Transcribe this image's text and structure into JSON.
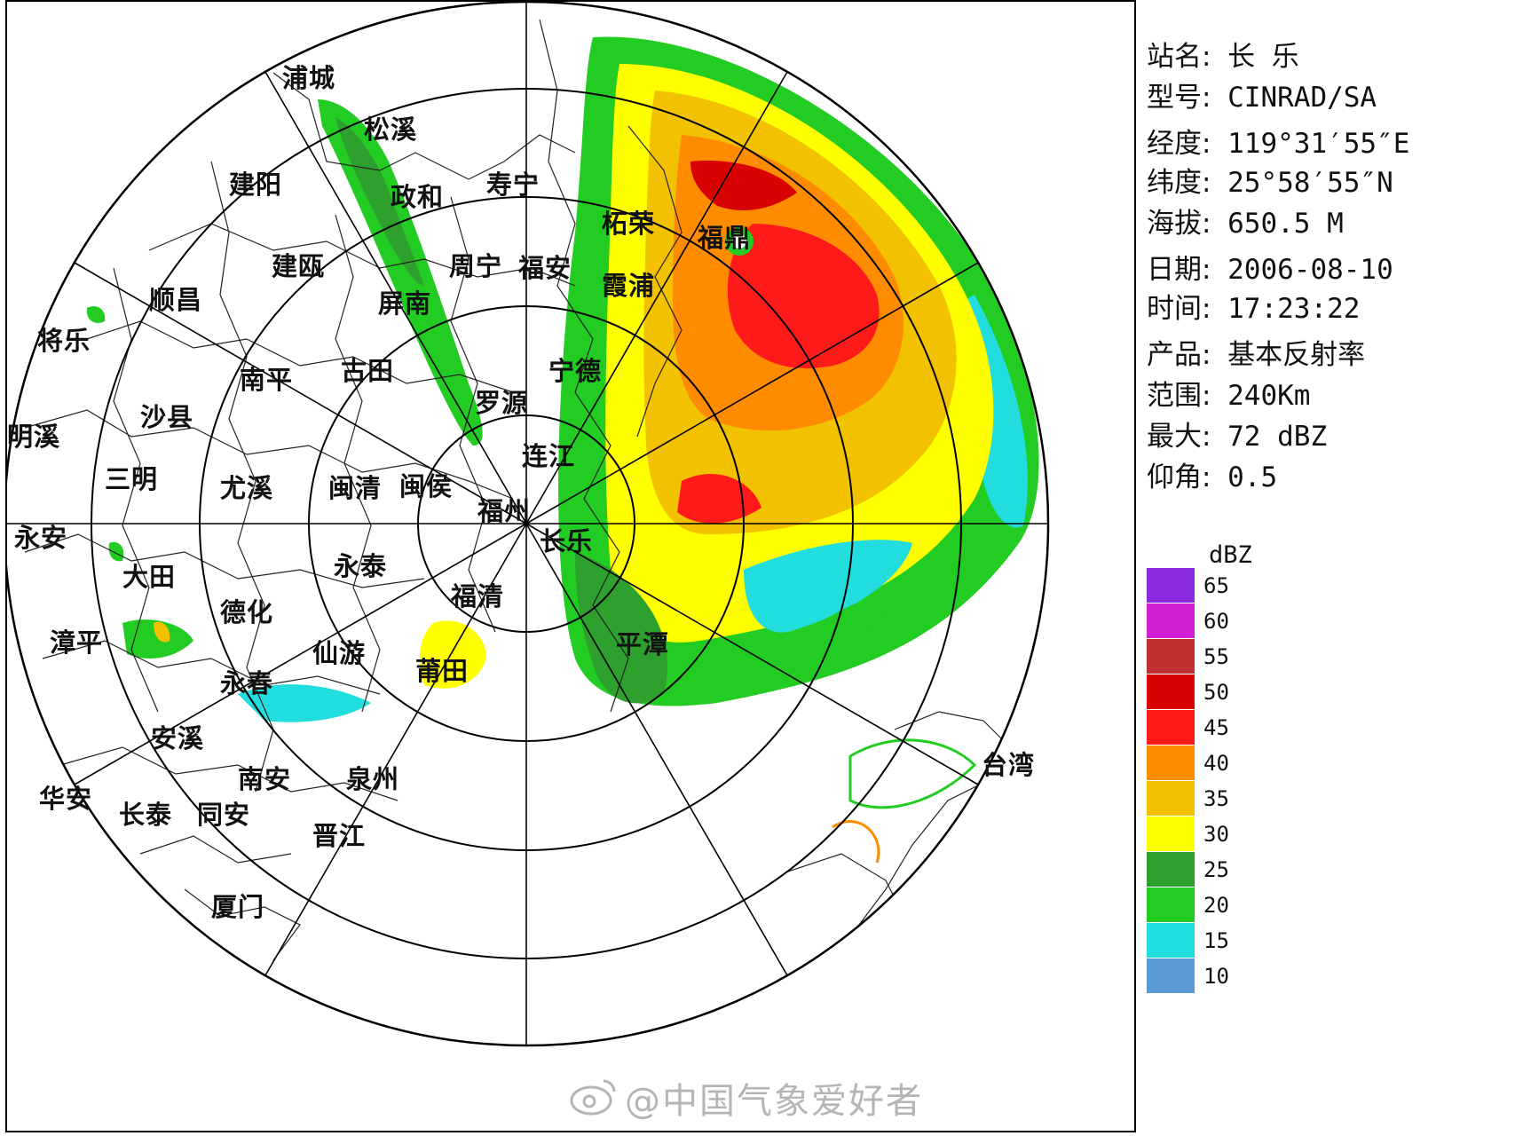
{
  "info": {
    "station": {
      "label": "站名:",
      "value": "长 乐"
    },
    "model": {
      "label": "型号:",
      "value": "CINRAD/SA"
    },
    "longitude": {
      "label": "经度:",
      "value": "119°31′55″E"
    },
    "latitude": {
      "label": "纬度:",
      "value": " 25°58′55″N"
    },
    "altitude": {
      "label": "海拔:",
      "value": "650.5 M"
    },
    "date": {
      "label": "日期:",
      "value": "2006-08-10"
    },
    "time": {
      "label": "时间:",
      "value": "17:23:22"
    },
    "product": {
      "label": "产品:",
      "value": "基本反射率"
    },
    "range": {
      "label": "范围:",
      "value": "240Km"
    },
    "max": {
      "label": "最大:",
      "value": "72 dBZ"
    },
    "elevation": {
      "label": "仰角:",
      "value": "0.5"
    }
  },
  "legend": {
    "unit": "dBZ",
    "levels": [
      {
        "value": "65",
        "color": "#8a2be2"
      },
      {
        "value": "60",
        "color": "#d11fd1"
      },
      {
        "value": "55",
        "color": "#c03030"
      },
      {
        "value": "50",
        "color": "#d80000"
      },
      {
        "value": "45",
        "color": "#ff1a1a"
      },
      {
        "value": "40",
        "color": "#ff8c00"
      },
      {
        "value": "35",
        "color": "#f2c200"
      },
      {
        "value": "30",
        "color": "#ffff00"
      },
      {
        "value": "25",
        "color": "#2ea02e"
      },
      {
        "value": "20",
        "color": "#22cc22"
      },
      {
        "value": "15",
        "color": "#22dddd"
      },
      {
        "value": "10",
        "color": "#5b9bd5"
      }
    ]
  },
  "cities": [
    "浦城",
    "松溪",
    "建阳",
    "政和",
    "寿宁",
    "柘荣",
    "福鼎",
    "建瓯",
    "周宁",
    "福安",
    "霞浦",
    "顺昌",
    "屏南",
    "将乐",
    "南平",
    "古田",
    "宁德",
    "罗源",
    "沙县",
    "明溪",
    "连江",
    "三明",
    "尤溪",
    "闽清",
    "闽侯",
    "福州",
    "长乐",
    "永安",
    "大田",
    "永泰",
    "德化",
    "福清",
    "漳平",
    "平潭",
    "仙游",
    "永春",
    "莆田",
    "安溪",
    "南安",
    "泉州",
    "台湾",
    "华安",
    "长泰",
    "同安",
    "晋江",
    "厦门"
  ],
  "watermark": "@中国气象爱好者"
}
